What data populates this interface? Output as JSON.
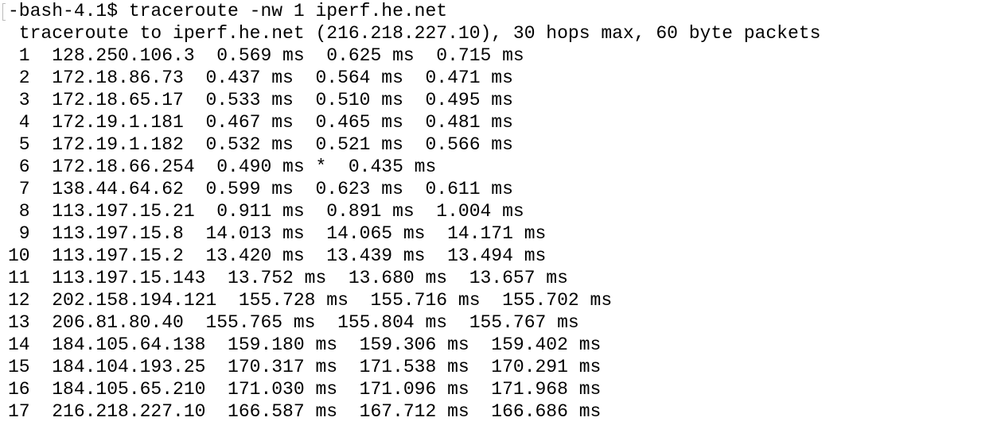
{
  "prompt": "-bash-4.1$ traceroute -nw 1 iperf.he.net",
  "header": " traceroute to iperf.he.net (216.218.227.10), 30 hops max, 60 byte packets",
  "hops": [
    " 1  128.250.106.3  0.569 ms  0.625 ms  0.715 ms",
    " 2  172.18.86.73  0.437 ms  0.564 ms  0.471 ms",
    " 3  172.18.65.17  0.533 ms  0.510 ms  0.495 ms",
    " 4  172.19.1.181  0.467 ms  0.465 ms  0.481 ms",
    " 5  172.19.1.182  0.532 ms  0.521 ms  0.566 ms",
    " 6  172.18.66.254  0.490 ms *  0.435 ms",
    " 7  138.44.64.62  0.599 ms  0.623 ms  0.611 ms",
    " 8  113.197.15.21  0.911 ms  0.891 ms  1.004 ms",
    " 9  113.197.15.8  14.013 ms  14.065 ms  14.171 ms",
    "10  113.197.15.2  13.420 ms  13.439 ms  13.494 ms",
    "11  113.197.15.143  13.752 ms  13.680 ms  13.657 ms",
    "12  202.158.194.121  155.728 ms  155.716 ms  155.702 ms",
    "13  206.81.80.40  155.765 ms  155.804 ms  155.767 ms",
    "14  184.105.64.138  159.180 ms  159.306 ms  159.402 ms",
    "15  184.104.193.25  170.317 ms  171.538 ms  170.291 ms",
    "16  184.105.65.210  171.030 ms  171.096 ms  171.968 ms",
    "17  216.218.227.10  166.587 ms  167.712 ms  166.686 ms"
  ]
}
